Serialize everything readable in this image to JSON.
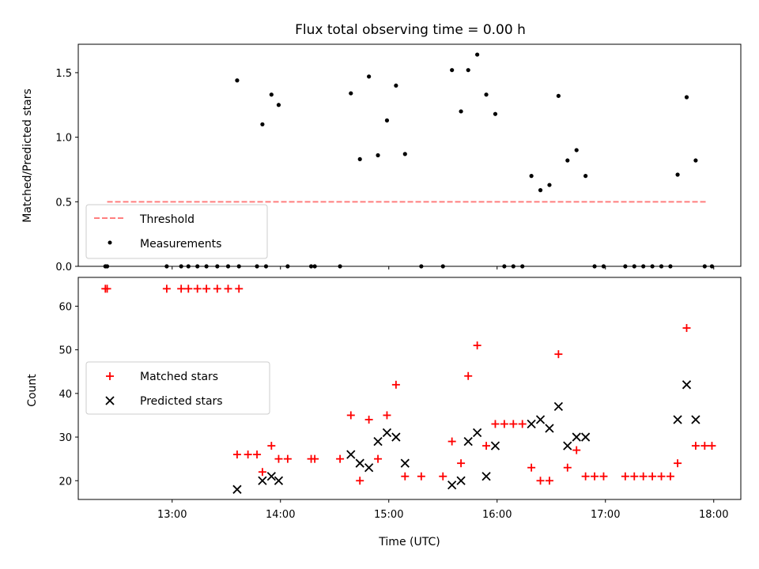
{
  "chart_data": [
    {
      "type": "scatter",
      "title": "Flux total observing time = 0.00 h",
      "xlabel": "",
      "ylabel": "Matched/Predicted stars",
      "xlim": [
        "12:08",
        "18:15"
      ],
      "ylim": [
        0,
        1.72
      ],
      "yticks": [
        0.0,
        0.5,
        1.0,
        1.5
      ],
      "ytick_labels": [
        "0.0",
        "0.5",
        "1.0",
        "1.5"
      ],
      "grid": false,
      "legend": {
        "placement": "lower-left",
        "entries": [
          {
            "label": "Threshold",
            "style": "dashed-line",
            "color": "#ff7f7f"
          },
          {
            "label": "Measurements",
            "style": "dot",
            "color": "#000000"
          }
        ]
      },
      "threshold": {
        "name": "Threshold",
        "y": 0.5,
        "x_start": "12:24",
        "x_end": "17:56",
        "color": "#ff7f7f"
      },
      "series": [
        {
          "name": "Measurements",
          "color": "#000000",
          "points": [
            [
              "12:23",
              0
            ],
            [
              "12:24",
              0
            ],
            [
              "12:57",
              0
            ],
            [
              "13:05",
              0
            ],
            [
              "13:09",
              0
            ],
            [
              "13:14",
              0
            ],
            [
              "13:19",
              0
            ],
            [
              "13:25",
              0
            ],
            [
              "13:31",
              0
            ],
            [
              "13:37",
              0
            ],
            [
              "13:36",
              1.44
            ],
            [
              "13:47",
              0
            ],
            [
              "13:52",
              0
            ],
            [
              "13:50",
              1.1
            ],
            [
              "13:55",
              1.33
            ],
            [
              "13:59",
              1.25
            ],
            [
              "14:04",
              0
            ],
            [
              "14:17",
              0
            ],
            [
              "14:19",
              0
            ],
            [
              "14:33",
              0
            ],
            [
              "14:39",
              1.34
            ],
            [
              "14:44",
              0.83
            ],
            [
              "14:49",
              1.47
            ],
            [
              "14:54",
              0.86
            ],
            [
              "14:59",
              1.13
            ],
            [
              "15:04",
              1.4
            ],
            [
              "15:09",
              0.87
            ],
            [
              "15:18",
              0
            ],
            [
              "15:30",
              0
            ],
            [
              "15:35",
              1.52
            ],
            [
              "15:40",
              1.2
            ],
            [
              "15:44",
              1.52
            ],
            [
              "15:49",
              1.64
            ],
            [
              "15:54",
              1.33
            ],
            [
              "15:59",
              1.18
            ],
            [
              "16:04",
              0
            ],
            [
              "16:09",
              0
            ],
            [
              "16:14",
              0
            ],
            [
              "16:19",
              0.7
            ],
            [
              "16:24",
              0.59
            ],
            [
              "16:29",
              0.63
            ],
            [
              "16:34",
              1.32
            ],
            [
              "16:39",
              0.82
            ],
            [
              "16:44",
              0.9
            ],
            [
              "16:49",
              0.7
            ],
            [
              "16:54",
              0
            ],
            [
              "16:59",
              0
            ],
            [
              "17:11",
              0
            ],
            [
              "17:16",
              0
            ],
            [
              "17:21",
              0
            ],
            [
              "17:26",
              0
            ],
            [
              "17:31",
              0
            ],
            [
              "17:36",
              0
            ],
            [
              "17:40",
              0.71
            ],
            [
              "17:45",
              1.31
            ],
            [
              "17:50",
              0.82
            ],
            [
              "17:55",
              0
            ],
            [
              "17:59",
              0
            ]
          ]
        }
      ]
    },
    {
      "type": "scatter",
      "title": "",
      "xlabel": "Time (UTC)",
      "ylabel": "Count",
      "xlim": [
        "12:08",
        "18:15"
      ],
      "ylim": [
        15.7,
        66.6
      ],
      "yticks": [
        20,
        30,
        40,
        50,
        60
      ],
      "ytick_labels": [
        "20",
        "30",
        "40",
        "50",
        "60"
      ],
      "xticks": [
        "13:00",
        "14:00",
        "15:00",
        "16:00",
        "17:00",
        "18:00"
      ],
      "xtick_labels": [
        "13:00",
        "14:00",
        "15:00",
        "16:00",
        "17:00",
        "18:00"
      ],
      "grid": false,
      "legend": {
        "placement": "center-left",
        "entries": [
          {
            "label": "Matched stars",
            "style": "plus",
            "color": "#ff0000"
          },
          {
            "label": "Predicted stars",
            "style": "x",
            "color": "#000000"
          }
        ]
      },
      "series": [
        {
          "name": "Matched stars",
          "marker": "plus",
          "color": "#ff0000",
          "points": [
            [
              "12:23",
              64
            ],
            [
              "12:24",
              64
            ],
            [
              "12:57",
              64
            ],
            [
              "13:05",
              64
            ],
            [
              "13:09",
              64
            ],
            [
              "13:14",
              64
            ],
            [
              "13:19",
              64
            ],
            [
              "13:25",
              64
            ],
            [
              "13:31",
              64
            ],
            [
              "13:37",
              64
            ],
            [
              "13:36",
              26
            ],
            [
              "13:42",
              26
            ],
            [
              "13:47",
              26
            ],
            [
              "13:50",
              22
            ],
            [
              "13:55",
              28
            ],
            [
              "13:59",
              25
            ],
            [
              "14:04",
              25
            ],
            [
              "14:17",
              25
            ],
            [
              "14:19",
              25
            ],
            [
              "14:33",
              25
            ],
            [
              "14:39",
              35
            ],
            [
              "14:44",
              20
            ],
            [
              "14:49",
              34
            ],
            [
              "14:54",
              25
            ],
            [
              "14:59",
              35
            ],
            [
              "15:04",
              42
            ],
            [
              "15:09",
              21
            ],
            [
              "15:18",
              21
            ],
            [
              "15:30",
              21
            ],
            [
              "15:35",
              29
            ],
            [
              "15:40",
              24
            ],
            [
              "15:44",
              44
            ],
            [
              "15:49",
              51
            ],
            [
              "15:54",
              28
            ],
            [
              "15:59",
              33
            ],
            [
              "16:04",
              33
            ],
            [
              "16:09",
              33
            ],
            [
              "16:14",
              33
            ],
            [
              "16:19",
              23
            ],
            [
              "16:24",
              20
            ],
            [
              "16:29",
              20
            ],
            [
              "16:34",
              49
            ],
            [
              "16:39",
              23
            ],
            [
              "16:44",
              27
            ],
            [
              "16:49",
              21
            ],
            [
              "16:54",
              21
            ],
            [
              "16:59",
              21
            ],
            [
              "17:11",
              21
            ],
            [
              "17:16",
              21
            ],
            [
              "17:21",
              21
            ],
            [
              "17:26",
              21
            ],
            [
              "17:31",
              21
            ],
            [
              "17:36",
              21
            ],
            [
              "17:40",
              24
            ],
            [
              "17:45",
              55
            ],
            [
              "17:50",
              28
            ],
            [
              "17:55",
              28
            ],
            [
              "17:59",
              28
            ]
          ]
        },
        {
          "name": "Predicted stars",
          "marker": "x",
          "color": "#000000",
          "points": [
            [
              "13:36",
              18
            ],
            [
              "13:50",
              20
            ],
            [
              "13:55",
              21
            ],
            [
              "13:59",
              20
            ],
            [
              "14:39",
              26
            ],
            [
              "14:44",
              24
            ],
            [
              "14:49",
              23
            ],
            [
              "14:54",
              29
            ],
            [
              "14:59",
              31
            ],
            [
              "15:04",
              30
            ],
            [
              "15:09",
              24
            ],
            [
              "15:35",
              19
            ],
            [
              "15:40",
              20
            ],
            [
              "15:44",
              29
            ],
            [
              "15:49",
              31
            ],
            [
              "15:54",
              21
            ],
            [
              "15:59",
              28
            ],
            [
              "16:19",
              33
            ],
            [
              "16:24",
              34
            ],
            [
              "16:29",
              32
            ],
            [
              "16:34",
              37
            ],
            [
              "16:39",
              28
            ],
            [
              "16:44",
              30
            ],
            [
              "16:49",
              30
            ],
            [
              "17:40",
              34
            ],
            [
              "17:45",
              42
            ],
            [
              "17:50",
              34
            ]
          ]
        }
      ]
    }
  ]
}
